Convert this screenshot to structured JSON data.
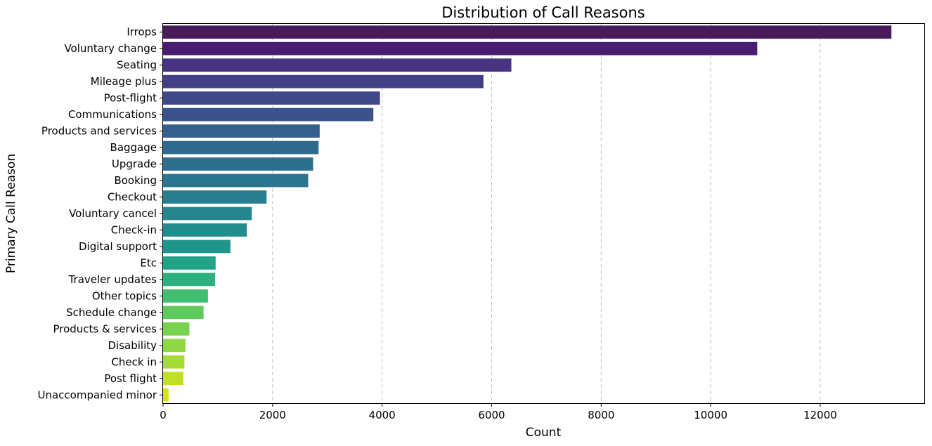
{
  "chart_data": {
    "type": "bar",
    "orientation": "horizontal",
    "title": "Distribution of Call Reasons",
    "xlabel": "Count",
    "ylabel": "Primary Call Reason",
    "xlim": [
      0,
      13900
    ],
    "xticks": [
      0,
      2000,
      4000,
      6000,
      8000,
      10000,
      12000
    ],
    "grid": "x-dashed",
    "palette": "viridis",
    "categories": [
      "Irrops",
      "Voluntary change",
      "Seating",
      "Mileage plus",
      "Post-flight",
      "Communications",
      "Products and services",
      "Baggage",
      "Upgrade",
      "Booking",
      "Checkout",
      "Voluntary cancel",
      "Check-in",
      "Digital support",
      "Etc",
      "Traveler updates",
      "Other topics",
      "Schedule change",
      "Products & services",
      "Disability",
      "Check in",
      "Post flight",
      "Unaccompanied minor"
    ],
    "values": [
      13300,
      10850,
      6360,
      5850,
      3960,
      3840,
      2860,
      2840,
      2740,
      2650,
      1890,
      1620,
      1530,
      1230,
      960,
      950,
      820,
      740,
      480,
      410,
      390,
      370,
      100
    ],
    "colors": [
      "#481a5a",
      "#481d6f",
      "#47337f",
      "#433e85",
      "#3f4889",
      "#3b528b",
      "#355f8d",
      "#31688e",
      "#2e6f8e",
      "#2b758e",
      "#287d8e",
      "#25858e",
      "#228d8d",
      "#1f958b",
      "#20a386",
      "#2cb17e",
      "#42be71",
      "#60ca60",
      "#7ad151",
      "#8fd744",
      "#a5db36",
      "#c0df25",
      "#d8e219"
    ]
  }
}
